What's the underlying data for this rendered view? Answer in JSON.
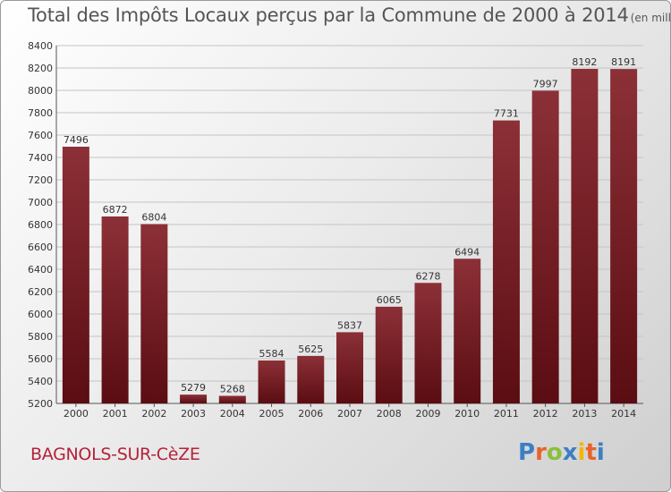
{
  "header": {
    "title": "Total des Impôts Locaux perçus par la Commune de 2000 à 2014",
    "unit": "(en milliers d'€)"
  },
  "footer": {
    "commune": "BAGNOLS-SUR-CèZE",
    "brand": "Proxiti"
  },
  "colors": {
    "bar_top": "#8c3037",
    "bar_bottom": "#5a0d12",
    "commune_text": "#b5213a",
    "logo_letters": [
      "#3c7fc4",
      "#e8642a",
      "#8bbf3c",
      "#3c7fc4",
      "#f2b705",
      "#e8642a",
      "#3c7fc4"
    ]
  },
  "chart_data": {
    "type": "bar",
    "categories": [
      "2000",
      "2001",
      "2002",
      "2003",
      "2004",
      "2005",
      "2006",
      "2007",
      "2008",
      "2009",
      "2010",
      "2011",
      "2012",
      "2013",
      "2014"
    ],
    "values": [
      7496,
      6872,
      6804,
      5279,
      5268,
      5584,
      5625,
      5837,
      6065,
      6278,
      6494,
      7731,
      7997,
      8192,
      8191
    ],
    "ylim": [
      5200,
      8400
    ],
    "yticks": [
      5200,
      5400,
      5600,
      5800,
      6000,
      6200,
      6400,
      6600,
      6800,
      7000,
      7200,
      7400,
      7600,
      7800,
      8000,
      8200,
      8400
    ],
    "grid": true,
    "data_labels": true
  }
}
